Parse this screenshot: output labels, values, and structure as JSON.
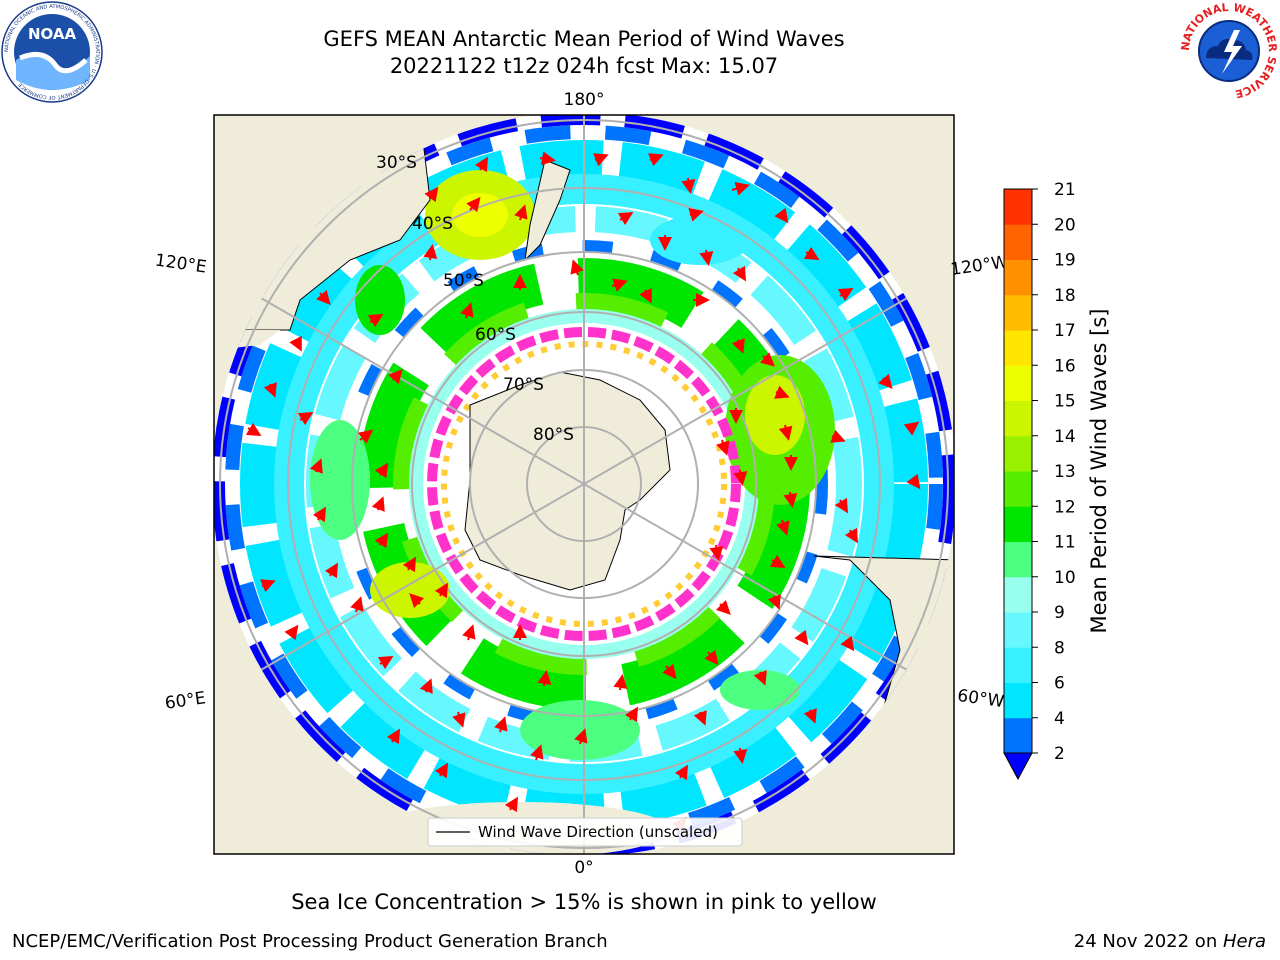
{
  "header": {
    "title_line1": "GEFS MEAN Antarctic Mean Period of Wind Waves",
    "title_line2": "20221122 t12z 024h fcst   Max: 15.07"
  },
  "map": {
    "projection": "south-polar-stereographic",
    "longitude_labels": [
      "180°",
      "120°E",
      "120°W",
      "60°E",
      "60°W",
      "0°"
    ],
    "latitude_labels": [
      "30°S",
      "40°S",
      "50°S",
      "60°S",
      "70°S",
      "80°S"
    ],
    "legend_label": "Wind Wave Direction (unscaled)",
    "arrow_color": "#ff0000",
    "land_color": "#efedda",
    "sea_ice_colors": [
      "#ff33cc",
      "#ffcc33"
    ]
  },
  "colorbar": {
    "label": "Mean Period of Wind Waves [s]",
    "ticks": [
      "2",
      "4",
      "6",
      "8",
      "9",
      "10",
      "11",
      "12",
      "13",
      "14",
      "15",
      "16",
      "17",
      "18",
      "19",
      "20",
      "21"
    ],
    "levels": [
      2,
      4,
      6,
      8,
      9,
      10,
      11,
      12,
      13,
      14,
      15,
      16,
      17,
      18,
      19,
      20,
      21
    ],
    "colors": [
      "#0073ff",
      "#00e6ff",
      "#38f0ff",
      "#66f7ff",
      "#99ffef",
      "#4dff80",
      "#00e600",
      "#55ee00",
      "#99f000",
      "#ccf500",
      "#eeff00",
      "#ffe600",
      "#ffbb00",
      "#ff9100",
      "#ff6400",
      "#ff3300"
    ],
    "extend_min_color": "#0000ff"
  },
  "caption": "Sea Ice Concentration > 15% is shown in pink to yellow",
  "footer": {
    "left": "NCEP/EMC/Verification Post Processing Product Generation Branch",
    "right_prefix": "24 Nov 2022 on ",
    "right_machine": "Hera"
  },
  "logos": {
    "noaa_text": "NOAA",
    "noaa_ring": "NATIONAL OCEANIC AND ATMOSPHERIC ADMINISTRATION · U.S. DEPARTMENT OF COMMERCE",
    "nws_ring": "NATIONAL WEATHER SERVICE"
  }
}
